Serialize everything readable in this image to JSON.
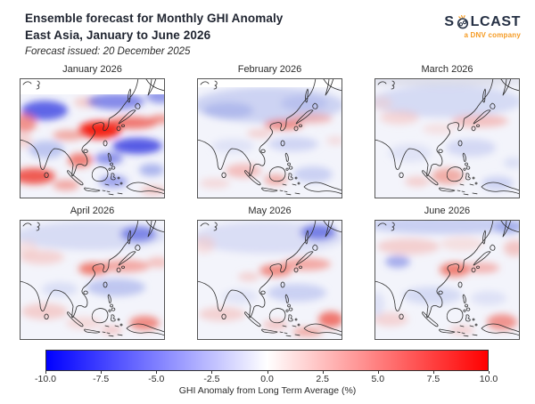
{
  "header": {
    "title_line1": "Ensemble forecast for Monthly GHI Anomaly",
    "title_line2": "East Asia, January to June 2026",
    "subtitle": "Forecast issued: 20 December 2025"
  },
  "logo": {
    "prefix": "S",
    "suffix": "LCAST",
    "tagline": "a DNV company",
    "brand_navy": "#253044",
    "brand_orange": "#f59b23"
  },
  "colorbar": {
    "label": "GHI Anomaly from Long Term Average (%)",
    "ticks": [
      "-10.0",
      "-7.5",
      "-5.0",
      "-2.5",
      "0.0",
      "2.5",
      "5.0",
      "7.5",
      "10.0"
    ],
    "min": -10,
    "max": 10,
    "colors": {
      "low": "#0000ff",
      "mid": "#ffffff",
      "high": "#ff0000"
    }
  },
  "panels": [
    {
      "label": "January 2026",
      "slug": "january-2026",
      "no_data_band": 18,
      "base": "#f3f4fb",
      "blobs": [
        [
          28,
          36,
          26,
          11,
          "#2d35e0",
          0.75
        ],
        [
          75,
          27,
          14,
          6,
          "#f4a8a0",
          0.5
        ],
        [
          108,
          26,
          32,
          9,
          "#3a46dd",
          0.6
        ],
        [
          158,
          20,
          16,
          8,
          "#4450dd",
          0.55
        ],
        [
          6,
          50,
          13,
          11,
          "#ee4433",
          0.55
        ],
        [
          4,
          70,
          10,
          8,
          "#f4a8a0",
          0.45
        ],
        [
          90,
          58,
          24,
          10,
          "#f50f00",
          0.9
        ],
        [
          126,
          50,
          28,
          7,
          "#ee4436",
          0.7
        ],
        [
          158,
          46,
          12,
          5,
          "#f05545",
          0.6
        ],
        [
          55,
          64,
          18,
          6,
          "#f07b6d",
          0.6
        ],
        [
          132,
          76,
          28,
          9,
          "#2228dd",
          0.75
        ],
        [
          100,
          90,
          16,
          7,
          "#3a46dd",
          0.55
        ],
        [
          30,
          80,
          20,
          10,
          "#9aa6ea",
          0.6
        ],
        [
          68,
          92,
          14,
          8,
          "#ee4030",
          0.65
        ],
        [
          16,
          110,
          24,
          9,
          "#ee2a1a",
          0.75
        ],
        [
          52,
          120,
          15,
          6,
          "#f0695c",
          0.55
        ],
        [
          105,
          116,
          16,
          7,
          "#4a58dd",
          0.5
        ],
        [
          148,
          103,
          14,
          7,
          "#6678e2",
          0.5
        ],
        [
          150,
          126,
          14,
          5,
          "#f0887c",
          0.45
        ]
      ]
    },
    {
      "label": "February 2026",
      "slug": "february-2026",
      "no_data_band": 10,
      "base": "#f3f4fb",
      "blobs": [
        [
          80,
          30,
          85,
          20,
          "#b8c1ee",
          0.65
        ],
        [
          35,
          36,
          28,
          9,
          "#96a2e8",
          0.5
        ],
        [
          120,
          28,
          26,
          9,
          "#a6b0ec",
          0.5
        ],
        [
          97,
          52,
          22,
          6,
          "#ee5544",
          0.65
        ],
        [
          128,
          45,
          24,
          6,
          "#f28e86",
          0.55
        ],
        [
          70,
          62,
          14,
          5,
          "#f4a9a2",
          0.45
        ],
        [
          108,
          74,
          28,
          8,
          "#b3bcee",
          0.55
        ],
        [
          40,
          76,
          24,
          8,
          "#ccd2f2",
          0.5
        ],
        [
          52,
          104,
          20,
          8,
          "#f2948c",
          0.55
        ],
        [
          88,
          114,
          13,
          6,
          "#ee6655",
          0.5
        ],
        [
          130,
          108,
          22,
          9,
          "#aab4ec",
          0.55
        ],
        [
          20,
          118,
          17,
          6,
          "#f6b4ae",
          0.4
        ],
        [
          155,
          70,
          10,
          5,
          "#f6b9b3",
          0.4
        ]
      ]
    },
    {
      "label": "March 2026",
      "slug": "march-2026",
      "no_data_band": 0,
      "base": "#f3f4fb",
      "blobs": [
        [
          80,
          3,
          95,
          6,
          "#d9dae8",
          0.9
        ],
        [
          80,
          26,
          85,
          18,
          "#c2c9f0",
          0.6
        ],
        [
          28,
          44,
          22,
          8,
          "#f6b4ae",
          0.45
        ],
        [
          118,
          48,
          32,
          7,
          "#f2988f",
          0.55
        ],
        [
          72,
          57,
          18,
          6,
          "#f8c4bf",
          0.4
        ],
        [
          108,
          78,
          28,
          10,
          "#b9c1ee",
          0.55
        ],
        [
          40,
          84,
          24,
          10,
          "#ccd2f2",
          0.5
        ],
        [
          82,
          110,
          18,
          9,
          "#ee7263",
          0.55
        ],
        [
          48,
          116,
          14,
          6,
          "#f4a49d",
          0.45
        ],
        [
          138,
          118,
          18,
          8,
          "#aab4ec",
          0.5
        ],
        [
          8,
          28,
          12,
          8,
          "#f8c8c3",
          0.4
        ],
        [
          155,
          95,
          10,
          6,
          "#c2c9f0",
          0.5
        ]
      ]
    },
    {
      "label": "April 2026",
      "slug": "april-2026",
      "no_data_band": 0,
      "base": "#f3f4fb",
      "blobs": [
        [
          80,
          18,
          85,
          16,
          "#c5ccf0",
          0.6
        ],
        [
          133,
          16,
          20,
          9,
          "#4d5ae0",
          0.65
        ],
        [
          8,
          32,
          12,
          9,
          "#f8c6c0",
          0.4
        ],
        [
          25,
          42,
          25,
          8,
          "#f6b2ac",
          0.5
        ],
        [
          83,
          55,
          17,
          7,
          "#ee5544",
          0.75
        ],
        [
          118,
          52,
          28,
          7,
          "#f28077",
          0.65
        ],
        [
          155,
          48,
          12,
          6,
          "#f49a92",
          0.55
        ],
        [
          108,
          76,
          33,
          10,
          "#9da9ea",
          0.6
        ],
        [
          45,
          78,
          20,
          8,
          "#c2c9f0",
          0.5
        ],
        [
          28,
          103,
          26,
          9,
          "#f4a8a1",
          0.5
        ],
        [
          72,
          116,
          20,
          7,
          "#f6b8b2",
          0.45
        ],
        [
          140,
          116,
          17,
          8,
          "#ee5242",
          0.65
        ],
        [
          103,
          124,
          12,
          5,
          "#f2958d",
          0.45
        ]
      ]
    },
    {
      "label": "May 2026",
      "slug": "may-2026",
      "no_data_band": 0,
      "base": "#f3f4fb",
      "blobs": [
        [
          80,
          20,
          85,
          18,
          "#c9cff2",
          0.6
        ],
        [
          136,
          14,
          20,
          9,
          "#4d5ae0",
          0.7
        ],
        [
          8,
          28,
          12,
          10,
          "#f8c2bc",
          0.45
        ],
        [
          88,
          57,
          18,
          7,
          "#ee6152",
          0.7
        ],
        [
          122,
          50,
          28,
          7,
          "#f28077",
          0.65
        ],
        [
          58,
          64,
          12,
          5,
          "#f4a8a1",
          0.45
        ],
        [
          112,
          82,
          33,
          10,
          "#aab4ec",
          0.55
        ],
        [
          48,
          86,
          20,
          8,
          "#ccd2f2",
          0.5
        ],
        [
          28,
          106,
          26,
          8,
          "#f4b0aa",
          0.5
        ],
        [
          88,
          118,
          14,
          6,
          "#f2938b",
          0.45
        ],
        [
          150,
          112,
          14,
          9,
          "#ee4434",
          0.7
        ],
        [
          124,
          126,
          17,
          5,
          "#ee6656",
          0.55
        ]
      ]
    },
    {
      "label": "June 2026",
      "slug": "june-2026",
      "no_data_band": 0,
      "base": "#f3f4fb",
      "blobs": [
        [
          80,
          6,
          90,
          10,
          "#aeb8ec",
          0.6
        ],
        [
          150,
          8,
          16,
          8,
          "#8c9ae8",
          0.6
        ],
        [
          38,
          30,
          35,
          9,
          "#f4aca5",
          0.5
        ],
        [
          98,
          27,
          24,
          8,
          "#f8c0ba",
          0.4
        ],
        [
          157,
          32,
          12,
          9,
          "#f2988f",
          0.5
        ],
        [
          26,
          47,
          14,
          7,
          "#6672e0",
          0.55
        ],
        [
          90,
          56,
          17,
          8,
          "#ee5140",
          0.7
        ],
        [
          120,
          54,
          20,
          6,
          "#f28077",
          0.55
        ],
        [
          65,
          85,
          33,
          10,
          "#bcc4ee",
          0.55
        ],
        [
          128,
          88,
          20,
          8,
          "#c9cff2",
          0.5
        ],
        [
          18,
          112,
          20,
          8,
          "#f4aea8",
          0.45
        ],
        [
          143,
          115,
          17,
          9,
          "#ee5242",
          0.6
        ],
        [
          98,
          124,
          14,
          5,
          "#f4a19a",
          0.45
        ],
        [
          3,
          95,
          8,
          14,
          "#c9cff2",
          0.5
        ]
      ]
    }
  ],
  "chart_data": {
    "type": "heatmap",
    "title": "Ensemble forecast for Monthly GHI Anomaly, East Asia, January to June 2026",
    "forecast_issued": "20 December 2025",
    "region": "East Asia",
    "variable": "GHI Anomaly from Long Term Average (%)",
    "colormap": "blue-white-red (bwr)",
    "value_range": [
      -10,
      10
    ],
    "colorbar_ticks": [
      -10.0,
      -7.5,
      -5.0,
      -2.5,
      0.0,
      2.5,
      5.0,
      7.5,
      10.0
    ],
    "panels": [
      "January 2026",
      "February 2026",
      "March 2026",
      "April 2026",
      "May 2026",
      "June 2026"
    ],
    "legend_position": "bottom horizontal colorbar",
    "qualitative_patterns": {
      "January 2026": "Strong positive anomaly (+6 to +10%) over eastern China, the Yellow Sea, Korea and southern Japan; strong negative anomalies (-6 to -10%) over western Siberia, the Sea of Okhotsk region and the subtropical west Pacific; positive anomalies over the Bay of Bengal, Indochina and the southern Indian Ocean; high-latitude strip shows no data (polar night).",
      "February 2026": "Weak negative anomaly (-1 to -3%) across most of northern Asia; narrow positive band (+3 to +5%) from the East China Sea across southern Japan; weak positive anomalies near Java and southern Borneo; thin no-data strip at top.",
      "March 2026": "Mostly weak negative anomaly; faint positive band east of Japan; moderate positive anomaly (+3 to +5%) over Borneo and Java; weak negatives in the far southeast.",
      "April 2026": "Weak negative anomaly in the north with a stronger pocket (-4 to -6%) near the Sea of Okhotsk; positive band (+3 to +6%) from the East China Sea across Japan; weak negative band over the tropical west Pacific; positive anomalies near New Guinea.",
      "May 2026": "Negative pocket near the Sea of Okhotsk; positive band (+3 to +5%) across Japan and the East China Sea; weak negatives in the tropics; positives near New Guinea and the far southeast corner.",
      "June 2026": "Weak positive band across central Asia; moderate positive anomaly (+3 to +5%) over Korea and Japan; small negative pocket over the Tibetan Plateau; weak negatives across the tropics with positives near New Guinea."
    }
  }
}
